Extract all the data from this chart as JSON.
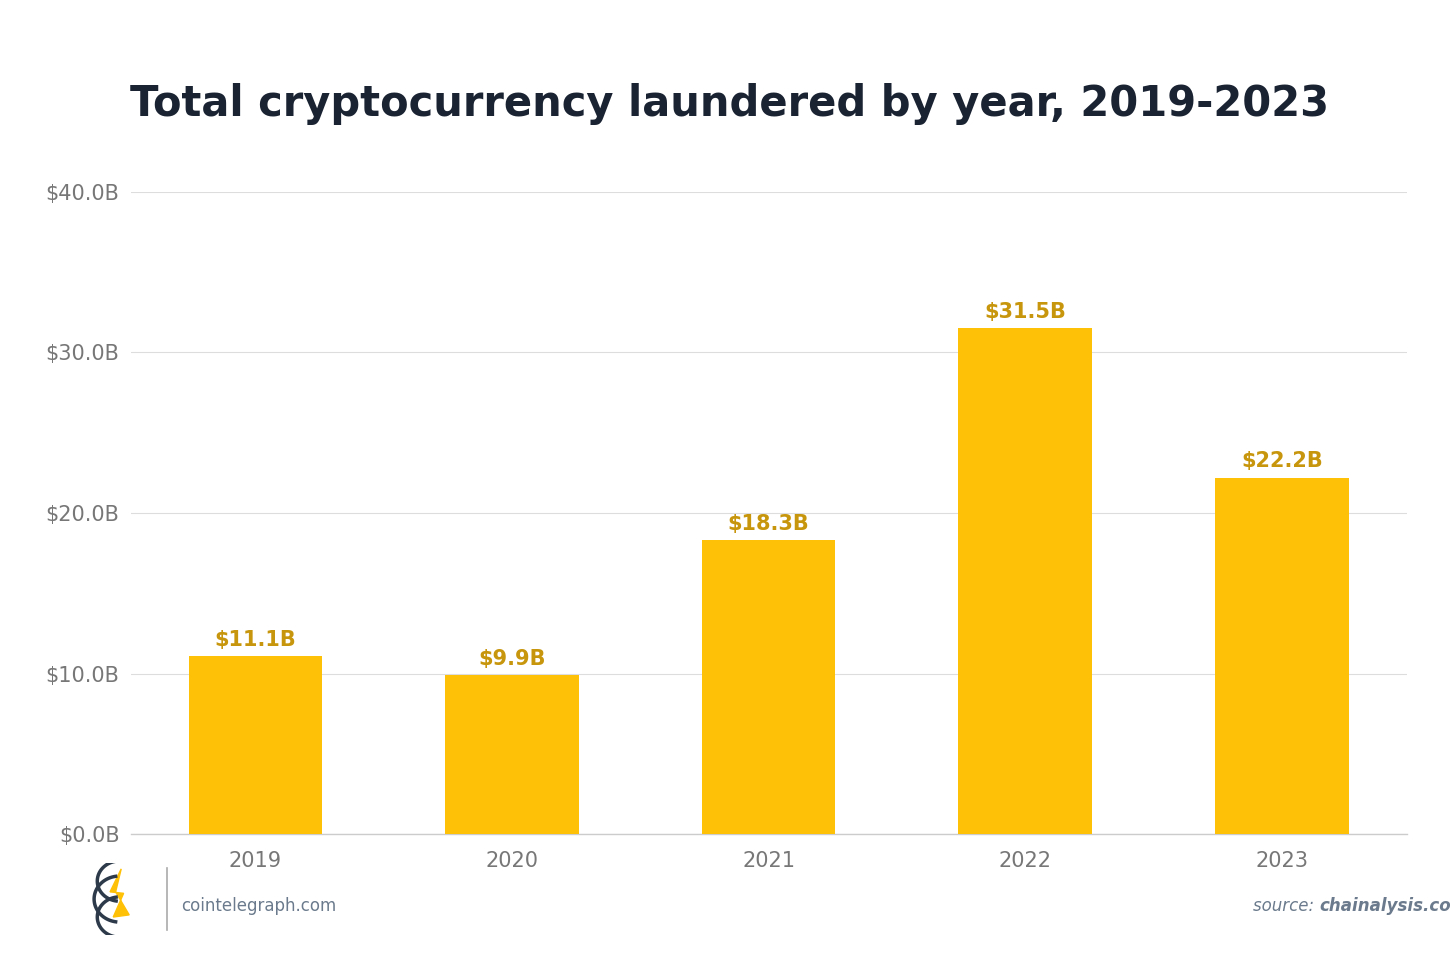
{
  "title": "Total cryptocurrency laundered by year, 2019-2023",
  "categories": [
    "2019",
    "2020",
    "2021",
    "2022",
    "2023"
  ],
  "values": [
    11.1,
    9.9,
    18.3,
    31.5,
    22.2
  ],
  "labels": [
    "$11.1B",
    "$9.9B",
    "$18.3B",
    "$31.5B",
    "$22.2B"
  ],
  "bar_color": "#FFC107",
  "label_color": "#C8960C",
  "title_color": "#1a2332",
  "tick_color": "#777777",
  "background_color": "#ffffff",
  "grid_color": "#dddddd",
  "ylim": [
    0,
    40
  ],
  "yticks": [
    0,
    10,
    20,
    30,
    40
  ],
  "ytick_labels": [
    "$0.0B",
    "$10.0B",
    "$20.0B",
    "$30.0B",
    "$40.0B"
  ],
  "title_fontsize": 30,
  "label_fontsize": 15,
  "tick_fontsize": 15,
  "footer_left": "cointelegraph.com",
  "footer_right_plain": "source: ",
  "footer_right_bold": "chainalysis.com",
  "footer_color": "#6b7b8d"
}
